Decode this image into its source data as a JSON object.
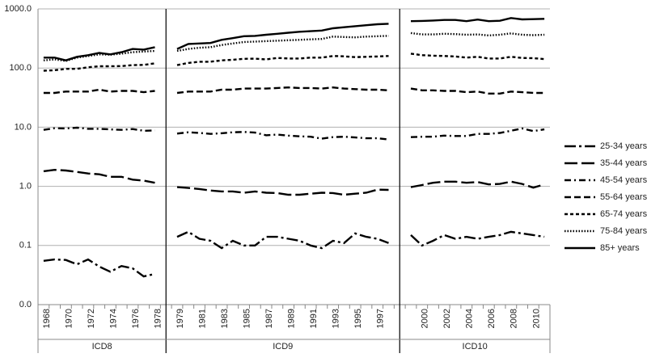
{
  "chart_data": {
    "type": "line",
    "log_scale": true,
    "grid": true,
    "legend_position": "right",
    "categories": [
      "1968",
      null,
      "1970",
      null,
      "1972",
      null,
      "1974",
      null,
      "1976",
      null,
      "1978",
      null,
      "1979",
      null,
      "1981",
      null,
      "1983",
      null,
      "1985",
      null,
      "1987",
      null,
      "1989",
      null,
      "1991",
      null,
      "1993",
      null,
      "1995",
      null,
      "1997",
      null,
      null,
      null,
      "2000",
      null,
      "2002",
      null,
      "2004",
      null,
      "2006",
      null,
      "2008",
      null,
      "2010",
      null
    ],
    "groups": [
      {
        "name": "ICD8",
        "size": 11
      },
      {
        "name": "ICD9",
        "size": 20
      },
      {
        "name": "ICD10",
        "size": 13
      }
    ],
    "ylim": [
      0.01,
      1000
    ],
    "yticks": [
      {
        "value": 0.01,
        "label": "0.0"
      },
      0.1,
      {
        "value": 1,
        "label": "1.0"
      },
      {
        "value": 10,
        "label": "10.0"
      },
      {
        "value": 100,
        "label": "100.0"
      },
      {
        "value": 1000,
        "label": "1000.0"
      }
    ],
    "series": [
      {
        "name": "25-34 years",
        "color": "#000000",
        "values": [
          0.055,
          0.058,
          0.057,
          0.048,
          0.058,
          0.044,
          0.036,
          0.045,
          0.041,
          0.03,
          0.033,
          null,
          0.14,
          0.17,
          0.13,
          0.12,
          0.09,
          0.12,
          0.1,
          0.1,
          0.14,
          0.14,
          0.13,
          0.12,
          0.1,
          0.09,
          0.12,
          0.11,
          0.16,
          0.14,
          0.13,
          0.11,
          null,
          0.15,
          0.1,
          0.12,
          0.15,
          0.13,
          0.14,
          0.13,
          0.14,
          0.15,
          0.17,
          0.16,
          0.15,
          0.14
        ]
      },
      {
        "name": "35-44 years",
        "color": "#000000",
        "values": [
          1.8,
          1.9,
          1.85,
          1.75,
          1.65,
          1.6,
          1.45,
          1.45,
          1.3,
          1.25,
          1.15,
          null,
          0.97,
          0.94,
          0.9,
          0.85,
          0.82,
          0.82,
          0.78,
          0.82,
          0.78,
          0.77,
          0.72,
          0.72,
          0.75,
          0.78,
          0.77,
          0.72,
          0.75,
          0.78,
          0.88,
          0.87,
          null,
          0.97,
          1.05,
          1.15,
          1.2,
          1.2,
          1.15,
          1.18,
          1.08,
          1.1,
          1.2,
          1.1,
          0.95,
          1.08
        ]
      },
      {
        "name": "45-54 years",
        "color": "#000000",
        "values": [
          9.0,
          9.6,
          9.5,
          9.8,
          9.4,
          9.4,
          9.2,
          9.0,
          9.3,
          8.7,
          8.8,
          null,
          7.8,
          8.2,
          8.0,
          7.7,
          7.9,
          8.2,
          8.3,
          8.1,
          7.3,
          7.5,
          7.2,
          7.0,
          6.9,
          6.4,
          6.8,
          6.9,
          6.7,
          6.5,
          6.5,
          6.2,
          null,
          6.8,
          6.9,
          6.9,
          7.2,
          7.1,
          7.1,
          7.7,
          7.7,
          8.0,
          8.7,
          9.5,
          8.6,
          9.2
        ]
      },
      {
        "name": "55-64 years",
        "color": "#000000",
        "values": [
          38,
          38,
          40,
          40,
          40,
          43,
          40,
          41,
          41,
          39,
          41,
          null,
          38,
          40,
          40,
          40,
          43,
          43,
          45,
          45,
          45,
          46,
          47,
          46,
          46,
          45,
          47,
          45,
          44,
          43,
          43,
          42,
          null,
          45,
          42,
          42,
          41,
          41,
          39,
          40,
          37,
          37,
          40,
          39,
          38,
          38
        ]
      },
      {
        "name": "65-74 years",
        "color": "#000000",
        "values": [
          90,
          92,
          97,
          97,
          103,
          107,
          107,
          108,
          112,
          113,
          120,
          null,
          112,
          122,
          128,
          128,
          135,
          138,
          143,
          144,
          140,
          148,
          145,
          145,
          150,
          150,
          160,
          158,
          153,
          155,
          157,
          160,
          null,
          175,
          165,
          162,
          160,
          157,
          150,
          155,
          145,
          145,
          155,
          148,
          147,
          142
        ]
      },
      {
        "name": "75-84 years",
        "color": "#000000",
        "values": [
          135,
          140,
          132,
          150,
          160,
          170,
          168,
          175,
          185,
          190,
          195,
          null,
          195,
          210,
          220,
          225,
          245,
          260,
          275,
          280,
          285,
          290,
          295,
          300,
          305,
          310,
          340,
          335,
          330,
          340,
          345,
          350,
          null,
          390,
          370,
          370,
          380,
          375,
          365,
          370,
          355,
          365,
          385,
          365,
          360,
          365
        ]
      },
      {
        "name": "85+ years",
        "color": "#000000",
        "values": [
          150,
          150,
          135,
          155,
          165,
          180,
          170,
          185,
          210,
          205,
          225,
          null,
          210,
          255,
          260,
          265,
          300,
          320,
          345,
          350,
          365,
          380,
          395,
          410,
          420,
          430,
          470,
          490,
          510,
          530,
          550,
          560,
          null,
          620,
          625,
          635,
          650,
          650,
          620,
          660,
          620,
          630,
          700,
          665,
          670,
          680
        ]
      }
    ]
  }
}
